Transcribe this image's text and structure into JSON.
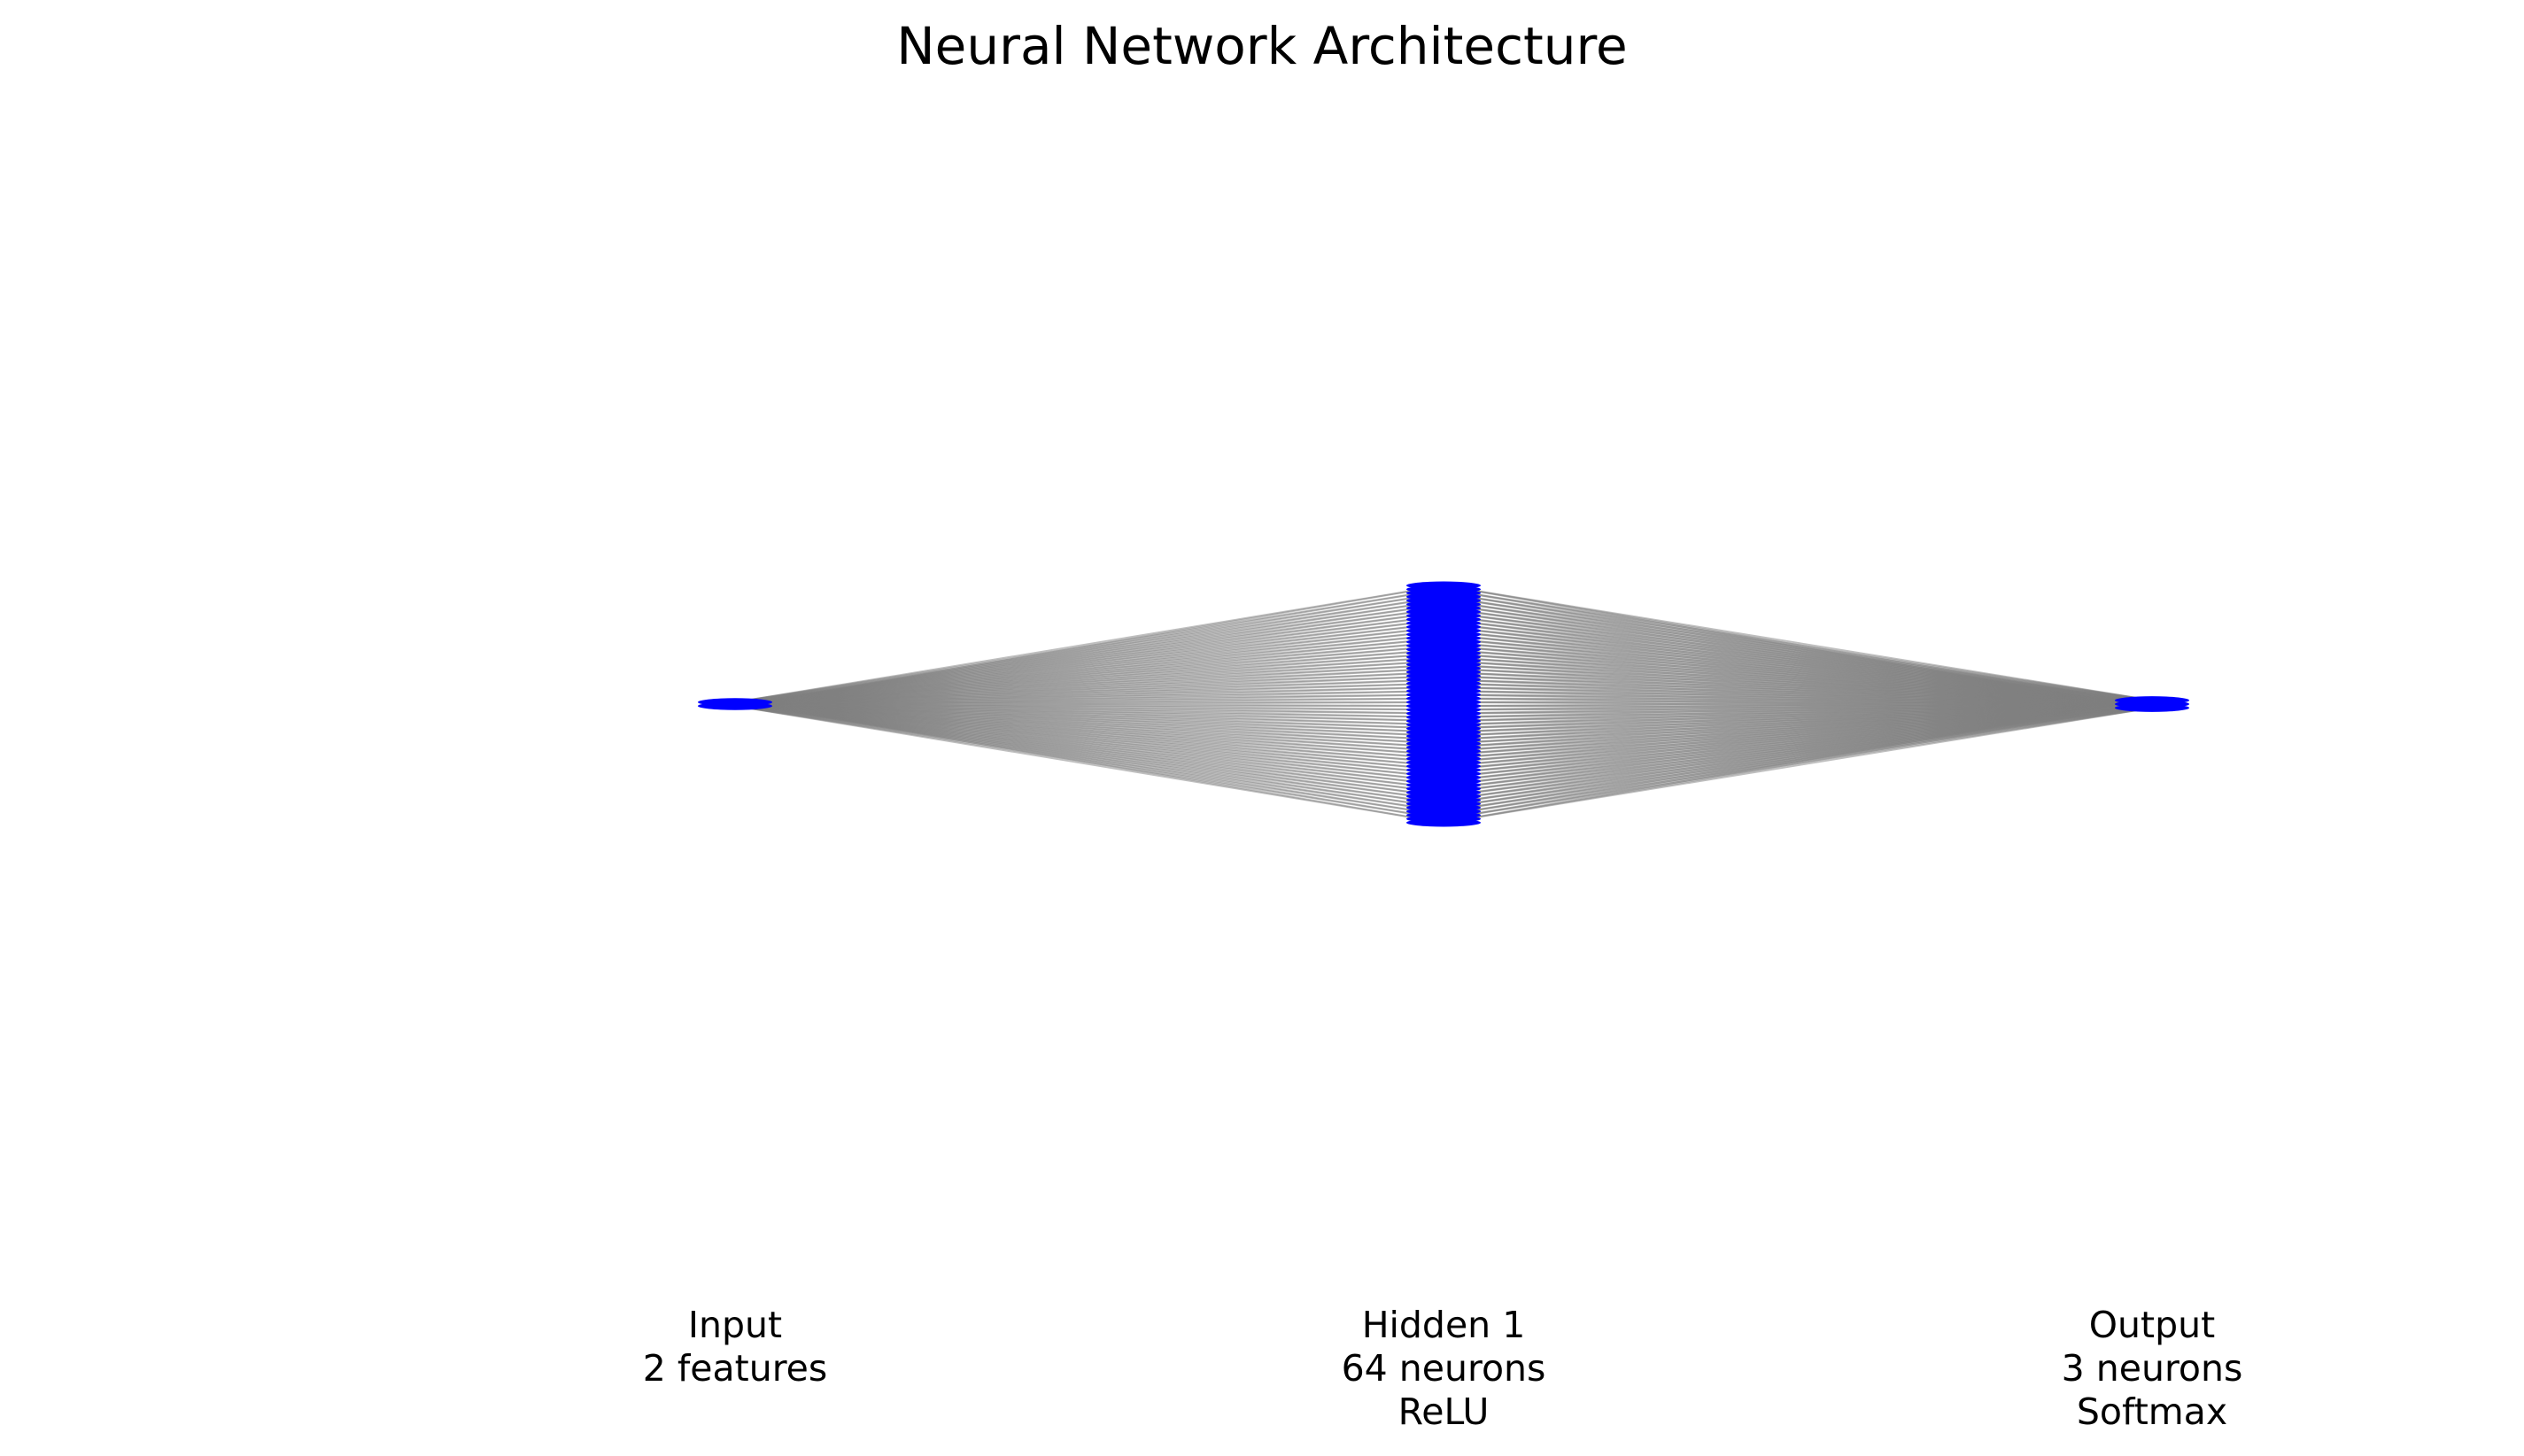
{
  "diagram": {
    "title": "Neural Network Architecture",
    "node_color": "#0000ff",
    "edge_color": "#808080",
    "layers": [
      {
        "name": "Input",
        "info": "2 features",
        "activation": "",
        "size": 2
      },
      {
        "name": "Hidden 1",
        "info": "64 neurons",
        "activation": "ReLU",
        "size": 64
      },
      {
        "name": "Output",
        "info": "3 neurons",
        "activation": "Softmax",
        "size": 3
      }
    ]
  }
}
